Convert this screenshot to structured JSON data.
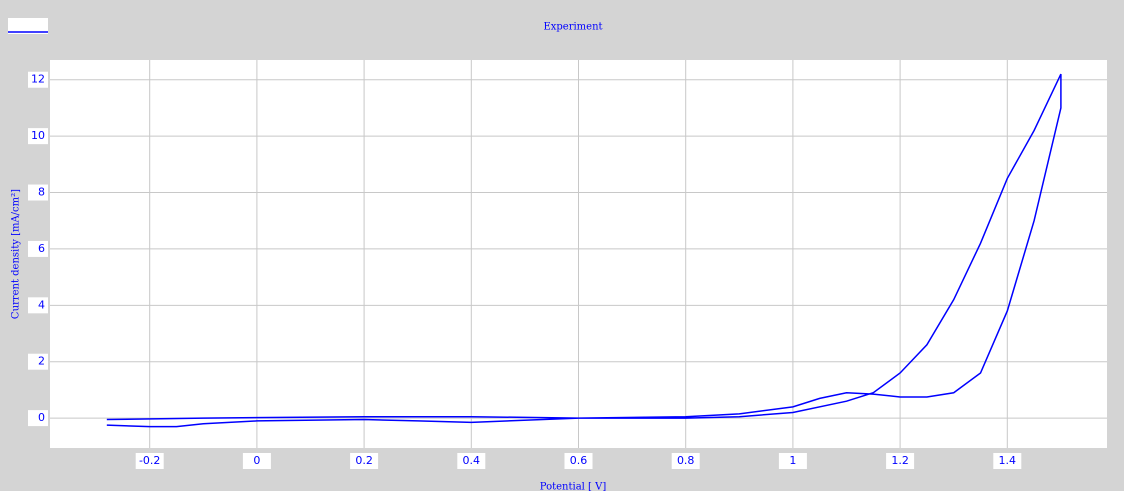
{
  "chart_data": {
    "type": "line",
    "title": "Experiment",
    "x_label": "Potential [ V]",
    "y_label": "Current density [mA/cm²]",
    "xlim": [
      -0.386,
      1.586
    ],
    "ylim": [
      -1.06,
      12.7
    ],
    "xticks": [
      -0.2,
      0,
      0.2,
      0.4,
      0.6,
      0.8,
      1,
      1.2,
      1.4
    ],
    "yticks": [
      0,
      2,
      4,
      6,
      8,
      10,
      12
    ],
    "grid": true,
    "series": [
      {
        "color": "#0000ff",
        "x": [
          -0.28,
          -0.1,
          0.2,
          0.4,
          0.6,
          0.8,
          0.9,
          1.0,
          1.05,
          1.1,
          1.15,
          1.2,
          1.25,
          1.3,
          1.35,
          1.4,
          1.45,
          1.5,
          1.5,
          1.45,
          1.4,
          1.35,
          1.3,
          1.25,
          1.2,
          1.15,
          1.1,
          1.0,
          0.9,
          0.8,
          0.6,
          0.4,
          0.3,
          0.2,
          0.0,
          -0.1,
          -0.15,
          -0.2,
          -0.28
        ],
        "values": [
          -0.05,
          0.0,
          0.05,
          0.05,
          0.0,
          0.05,
          0.15,
          0.4,
          0.7,
          0.9,
          0.85,
          0.75,
          0.75,
          0.9,
          1.6,
          3.8,
          7.0,
          11.0,
          12.2,
          10.2,
          8.5,
          6.2,
          4.2,
          2.6,
          1.6,
          0.9,
          0.6,
          0.2,
          0.05,
          0.0,
          0.0,
          -0.15,
          -0.1,
          -0.05,
          -0.1,
          -0.2,
          -0.3,
          -0.3,
          -0.25
        ]
      }
    ]
  }
}
